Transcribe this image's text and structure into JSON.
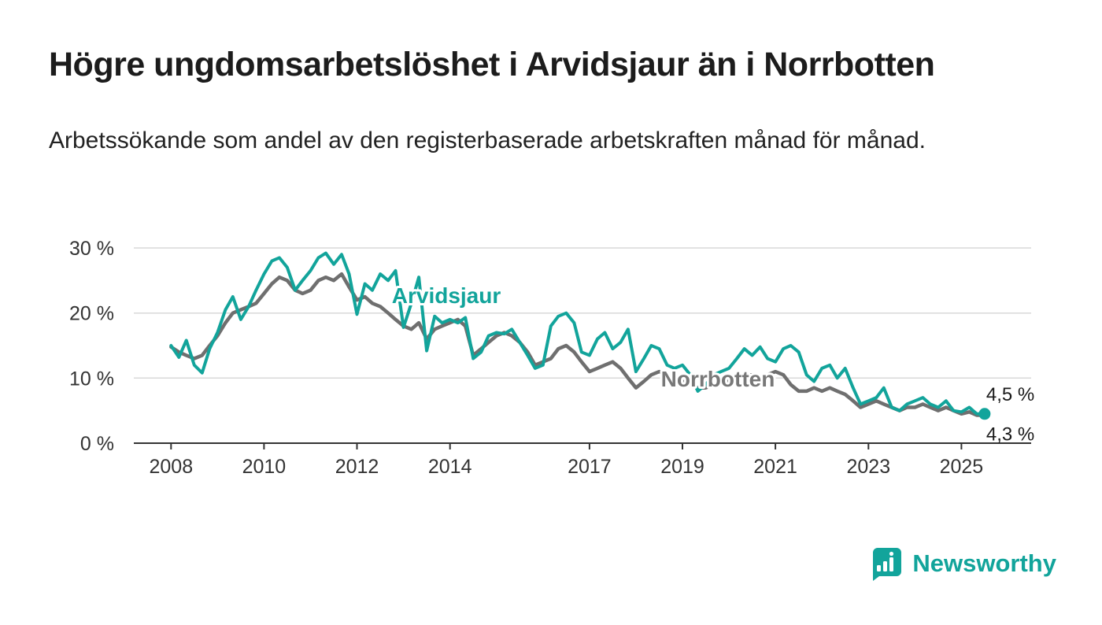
{
  "page": {
    "title": "Högre ungdomsarbetslöshet i Arvidsjaur än i Norrbotten",
    "subtitle": "Arbetssökande som andel av den registerbaserade arbetskraften månad för månad."
  },
  "branding": {
    "name": "Newsworthy",
    "color": "#12a49b"
  },
  "colors": {
    "arvidsjaur": "#12a49b",
    "norrbotten": "#6f6f6f",
    "norrbotten_label": "#787878",
    "grid": "#d9d9d9",
    "axis": "#333333",
    "value_label": "#1a1a1a"
  },
  "chart_data": {
    "type": "line",
    "title": "Högre ungdomsarbetslöshet i Arvidsjaur än i Norrbotten",
    "xlabel": "",
    "ylabel": "",
    "ylim": [
      0,
      30
    ],
    "xlim": [
      2007.2,
      2026.5
    ],
    "grid": true,
    "legend_position": "inline",
    "y_ticks": [
      "0 %",
      "10 %",
      "20 %",
      "30 %"
    ],
    "y_tick_values": [
      0,
      10,
      20,
      30
    ],
    "x_ticks": [
      2008,
      2010,
      2012,
      2014,
      2017,
      2019,
      2021,
      2023,
      2025
    ],
    "x": [
      2008.0,
      2008.17,
      2008.33,
      2008.5,
      2008.67,
      2008.83,
      2009.0,
      2009.17,
      2009.33,
      2009.5,
      2009.67,
      2009.83,
      2010.0,
      2010.17,
      2010.33,
      2010.5,
      2010.67,
      2010.83,
      2011.0,
      2011.17,
      2011.33,
      2011.5,
      2011.67,
      2011.83,
      2012.0,
      2012.17,
      2012.33,
      2012.5,
      2012.67,
      2012.83,
      2013.0,
      2013.17,
      2013.33,
      2013.5,
      2013.67,
      2013.83,
      2014.0,
      2014.17,
      2014.33,
      2014.5,
      2014.67,
      2014.83,
      2015.0,
      2015.17,
      2015.33,
      2015.5,
      2015.67,
      2015.83,
      2016.0,
      2016.17,
      2016.33,
      2016.5,
      2016.67,
      2016.83,
      2017.0,
      2017.17,
      2017.33,
      2017.5,
      2017.67,
      2017.83,
      2018.0,
      2018.17,
      2018.33,
      2018.5,
      2018.67,
      2018.83,
      2019.0,
      2019.17,
      2019.33,
      2019.5,
      2019.67,
      2019.83,
      2020.0,
      2020.17,
      2020.33,
      2020.5,
      2020.67,
      2020.83,
      2021.0,
      2021.17,
      2021.33,
      2021.5,
      2021.67,
      2021.83,
      2022.0,
      2022.17,
      2022.33,
      2022.5,
      2022.67,
      2022.83,
      2023.0,
      2023.17,
      2023.33,
      2023.5,
      2023.67,
      2023.83,
      2024.0,
      2024.17,
      2024.33,
      2024.5,
      2024.67,
      2024.83,
      2025.0,
      2025.17,
      2025.33,
      2025.5
    ],
    "series": [
      {
        "name": "Arvidsjaur",
        "label": "Arvidsjaur",
        "end_label": "4,5 %",
        "end_value": 4.5,
        "color": "#12a49b",
        "values": [
          15.0,
          13.2,
          15.8,
          12.0,
          10.8,
          14.5,
          17.0,
          20.5,
          22.5,
          19.0,
          21.0,
          23.5,
          26.0,
          28.0,
          28.5,
          27.0,
          23.5,
          25.0,
          26.5,
          28.5,
          29.2,
          27.5,
          29.0,
          26.0,
          19.8,
          24.5,
          23.5,
          26.0,
          25.0,
          26.5,
          17.8,
          21.5,
          25.5,
          14.2,
          19.5,
          18.5,
          19.0,
          18.5,
          19.3,
          13.0,
          14.0,
          16.5,
          17.0,
          16.8,
          17.5,
          15.5,
          13.5,
          11.5,
          12.0,
          18.0,
          19.5,
          20.0,
          18.5,
          14.0,
          13.5,
          16.0,
          17.0,
          14.5,
          15.5,
          17.5,
          11.0,
          13.0,
          15.0,
          14.5,
          12.0,
          11.5,
          12.0,
          10.5,
          8.0,
          9.0,
          10.5,
          11.0,
          11.5,
          13.0,
          14.5,
          13.5,
          14.8,
          13.0,
          12.5,
          14.5,
          15.0,
          14.0,
          10.5,
          9.5,
          11.5,
          12.0,
          10.0,
          11.5,
          8.5,
          6.0,
          6.5,
          7.0,
          8.5,
          5.5,
          5.0,
          6.0,
          6.5,
          7.0,
          6.0,
          5.5,
          6.5,
          5.0,
          4.8,
          5.5,
          4.5,
          4.5
        ]
      },
      {
        "name": "Norrbotten",
        "label": "Norrbotten",
        "end_label": "4,3 %",
        "end_value": 4.3,
        "color": "#6f6f6f",
        "values": [
          14.8,
          14.0,
          13.5,
          13.0,
          13.5,
          15.0,
          16.5,
          18.5,
          20.0,
          20.5,
          21.0,
          21.5,
          23.0,
          24.5,
          25.5,
          25.0,
          23.5,
          23.0,
          23.5,
          25.0,
          25.5,
          25.0,
          26.0,
          24.0,
          22.0,
          22.5,
          21.5,
          21.0,
          20.0,
          19.0,
          18.0,
          17.5,
          18.5,
          16.0,
          17.5,
          18.0,
          18.5,
          19.0,
          18.0,
          13.5,
          14.5,
          15.5,
          16.5,
          17.0,
          16.5,
          15.5,
          14.0,
          12.0,
          12.5,
          13.0,
          14.5,
          15.0,
          14.0,
          12.5,
          11.0,
          11.5,
          12.0,
          12.5,
          11.5,
          10.0,
          8.5,
          9.5,
          10.5,
          11.0,
          10.5,
          10.0,
          9.5,
          9.0,
          8.5,
          8.5,
          9.0,
          9.5,
          9.5,
          10.0,
          10.5,
          10.5,
          10.0,
          10.5,
          11.0,
          10.5,
          9.0,
          8.0,
          8.0,
          8.5,
          8.0,
          8.5,
          8.0,
          7.5,
          6.5,
          5.5,
          6.0,
          6.5,
          6.0,
          5.5,
          5.0,
          5.5,
          5.5,
          6.0,
          5.5,
          5.0,
          5.5,
          5.0,
          4.5,
          4.8,
          4.3,
          4.3
        ]
      }
    ]
  }
}
